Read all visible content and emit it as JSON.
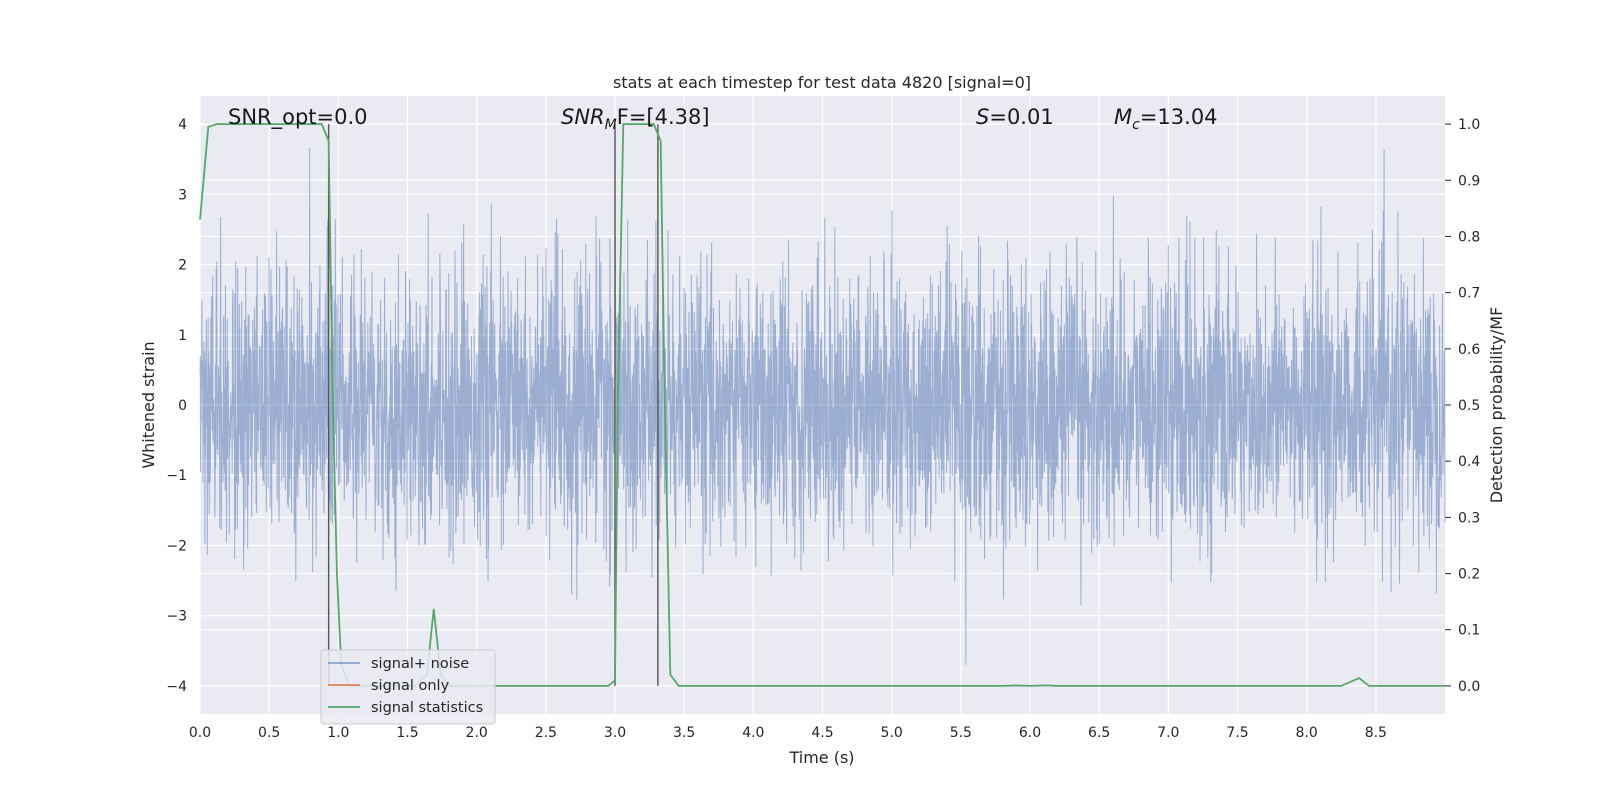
{
  "chart_data": {
    "type": "line",
    "title": "stats at each timestep for test data 4820 [signal=0]",
    "xlabel": "Time (s)",
    "ylabel_left": "Whitened strain",
    "ylabel_right": "Detection probability/MF",
    "xlim": [
      0.0,
      9.0
    ],
    "ylim_left": [
      -4.4,
      4.4
    ],
    "ylim_right": [
      -0.05,
      1.05
    ],
    "x_ticks": [
      0.0,
      0.5,
      1.0,
      1.5,
      2.0,
      2.5,
      3.0,
      3.5,
      4.0,
      4.5,
      5.0,
      5.5,
      6.0,
      6.5,
      7.0,
      7.5,
      8.0,
      8.5
    ],
    "x_tick_labels": [
      "0.0",
      "0.5",
      "1.0",
      "1.5",
      "2.0",
      "2.5",
      "3.0",
      "3.5",
      "4.0",
      "4.5",
      "5.0",
      "5.5",
      "6.0",
      "6.5",
      "7.0",
      "7.5",
      "8.0",
      "8.5"
    ],
    "y_left_ticks": [
      -4,
      -3,
      -2,
      -1,
      0,
      1,
      2,
      3,
      4
    ],
    "y_left_tick_labels": [
      "−4",
      "−3",
      "−2",
      "−1",
      "0",
      "1",
      "2",
      "3",
      "4"
    ],
    "y_right_ticks": [
      0.0,
      0.1,
      0.2,
      0.3,
      0.4,
      0.5,
      0.6,
      0.7,
      0.8,
      0.9,
      1.0
    ],
    "y_right_tick_labels": [
      "0.0",
      "0.1",
      "0.2",
      "0.3",
      "0.4",
      "0.5",
      "0.6",
      "0.7",
      "0.8",
      "0.9",
      "1.0"
    ],
    "grid": true,
    "background": "#eaeaf2",
    "annotations": {
      "snr_opt": "SNR_opt=0.0",
      "snr_mf_main": "SNR",
      "snr_mf_sub": "M",
      "snr_mf_rest": "F=[4.38]",
      "s_label": "S",
      "s_value": "=0.01",
      "mc_label": "M",
      "mc_sub": "c",
      "mc_value": "=13.04"
    },
    "legend": {
      "placement": "lower-left",
      "entries": [
        "signal+ noise",
        "signal only",
        "signal statistics"
      ]
    },
    "series": [
      {
        "name": "signal+ noise",
        "color": "#4c72b0",
        "alpha": 0.5,
        "style": "noise",
        "duration_s": 9.0,
        "std": 1.0,
        "peak_max": 4.0,
        "peak_min": -3.7
      },
      {
        "name": "signal only",
        "color": "#dd8452",
        "values": []
      },
      {
        "name": "signal statistics",
        "color": "#55a868",
        "points": [
          [
            0.0,
            0.83
          ],
          [
            0.06,
            0.995
          ],
          [
            0.12,
            1.0
          ],
          [
            0.3,
            1.0
          ],
          [
            0.5,
            1.0
          ],
          [
            0.7,
            1.0
          ],
          [
            0.88,
            1.0
          ],
          [
            0.93,
            0.97
          ],
          [
            0.96,
            0.5
          ],
          [
            0.99,
            0.2
          ],
          [
            1.02,
            0.04
          ],
          [
            1.08,
            0.0
          ],
          [
            1.55,
            0.0
          ],
          [
            1.64,
            0.02
          ],
          [
            1.69,
            0.137
          ],
          [
            1.74,
            0.02
          ],
          [
            1.8,
            0.0
          ],
          [
            2.4,
            0.0
          ],
          [
            2.95,
            0.0
          ],
          [
            3.0,
            0.01
          ],
          [
            3.02,
            0.5
          ],
          [
            3.06,
            1.0
          ],
          [
            3.28,
            1.0
          ],
          [
            3.33,
            0.97
          ],
          [
            3.36,
            0.5
          ],
          [
            3.4,
            0.02
          ],
          [
            3.46,
            0.0
          ],
          [
            4.5,
            0.0
          ],
          [
            5.8,
            0.0
          ],
          [
            5.9,
            0.0008
          ],
          [
            6.0,
            0.0
          ],
          [
            6.12,
            0.001
          ],
          [
            6.2,
            0.0
          ],
          [
            7.5,
            0.0
          ],
          [
            8.25,
            0.0
          ],
          [
            8.38,
            0.014
          ],
          [
            8.45,
            0.0
          ],
          [
            9.0,
            0.0
          ]
        ]
      }
    ],
    "vertical_markers_s": [
      0.93,
      3.0,
      3.31
    ],
    "marker_color": "#555555"
  }
}
